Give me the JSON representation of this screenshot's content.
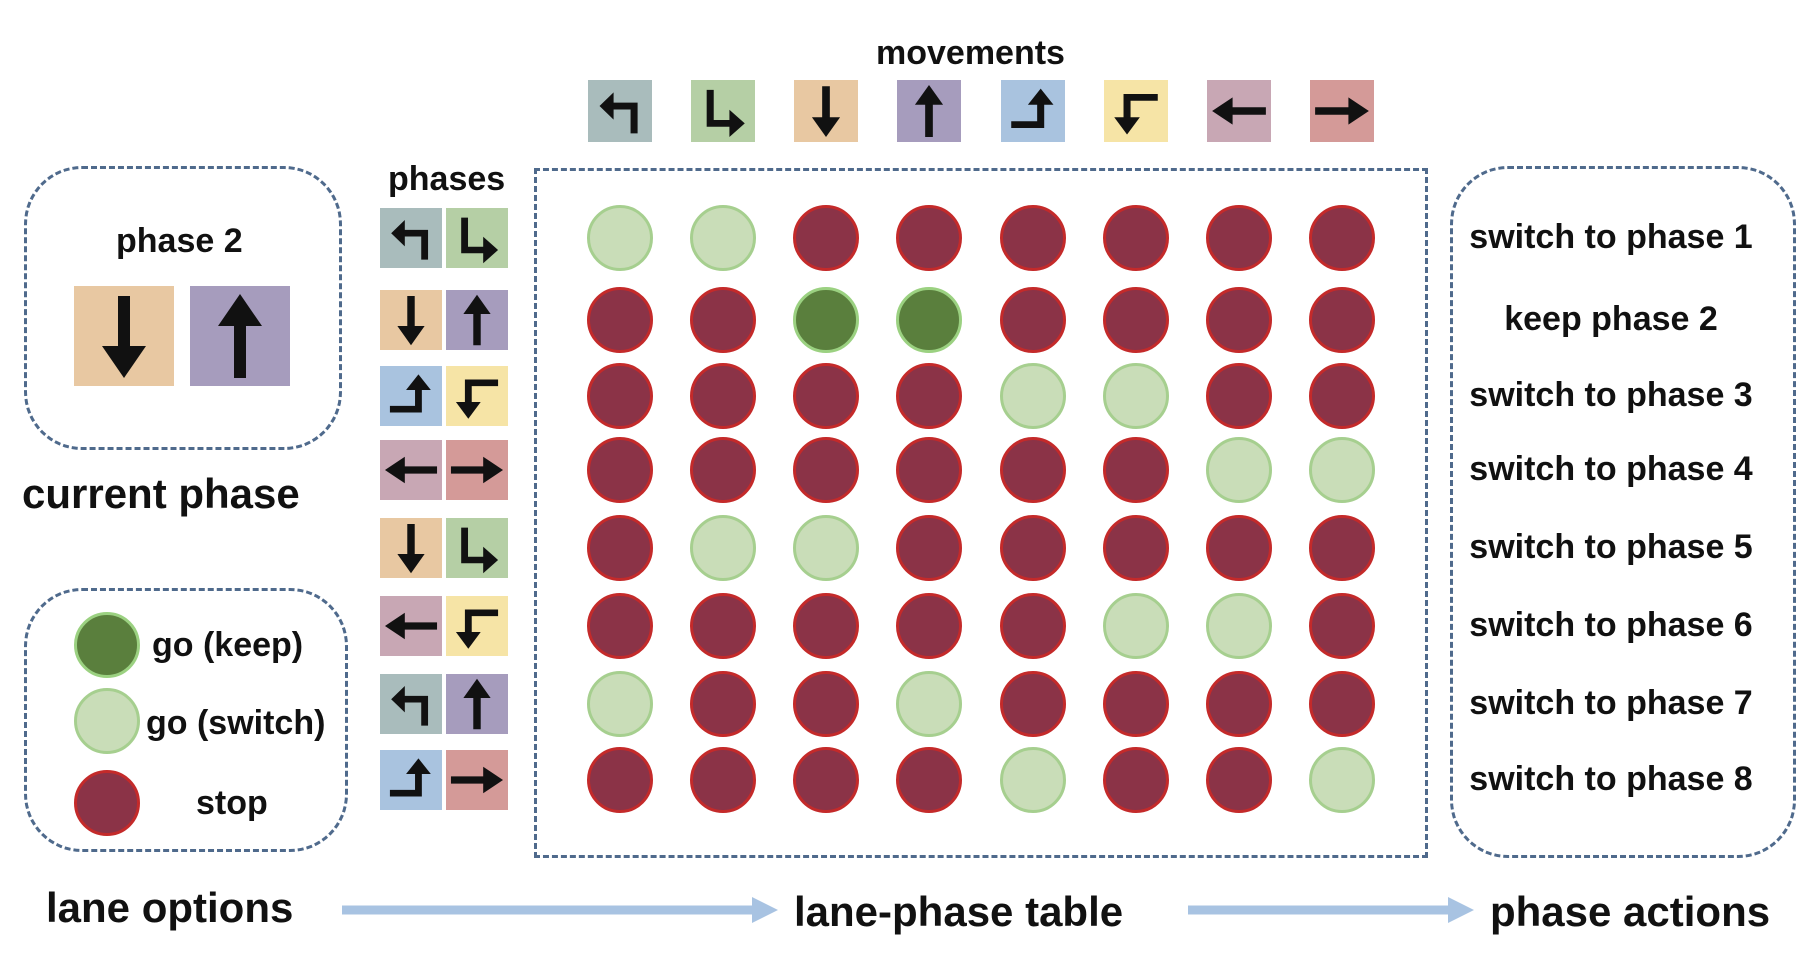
{
  "movements_label": "movements",
  "phases_label": "phases",
  "current_phase": {
    "title": "phase 2",
    "caption": "current phase",
    "movements": [
      "south",
      "north"
    ]
  },
  "movements": [
    {
      "name": "north-left-turn",
      "color": "#a9bcbc",
      "icon": "turn-left-arrow-icon"
    },
    {
      "name": "west-right-turn",
      "color": "#b5cfa5",
      "icon": "turn-right-arrow-icon"
    },
    {
      "name": "south-through",
      "color": "#e8c8a2",
      "icon": "down-arrow-icon"
    },
    {
      "name": "north-through",
      "color": "#a69cbd",
      "icon": "up-arrow-icon"
    },
    {
      "name": "south-left-turn",
      "color": "#a9c3df",
      "icon": "turn-up-arrow-icon"
    },
    {
      "name": "east-right-turn",
      "color": "#f6e4a6",
      "icon": "turn-down-arrow-icon"
    },
    {
      "name": "west-through",
      "color": "#c8a7b4",
      "icon": "left-arrow-icon"
    },
    {
      "name": "east-through",
      "color": "#d49a98",
      "icon": "right-arrow-icon"
    }
  ],
  "phases": [
    [
      0,
      1
    ],
    [
      2,
      3
    ],
    [
      4,
      5
    ],
    [
      6,
      7
    ],
    [
      2,
      1
    ],
    [
      6,
      5
    ],
    [
      0,
      3
    ],
    [
      4,
      7
    ]
  ],
  "table": [
    [
      "switch",
      "switch",
      "stop",
      "stop",
      "stop",
      "stop",
      "stop",
      "stop"
    ],
    [
      "stop",
      "stop",
      "keep",
      "keep",
      "stop",
      "stop",
      "stop",
      "stop"
    ],
    [
      "stop",
      "stop",
      "stop",
      "stop",
      "switch",
      "switch",
      "stop",
      "stop"
    ],
    [
      "stop",
      "stop",
      "stop",
      "stop",
      "stop",
      "stop",
      "switch",
      "switch"
    ],
    [
      "stop",
      "switch",
      "switch",
      "stop",
      "stop",
      "stop",
      "stop",
      "stop"
    ],
    [
      "stop",
      "stop",
      "stop",
      "stop",
      "stop",
      "switch",
      "switch",
      "stop"
    ],
    [
      "switch",
      "stop",
      "stop",
      "switch",
      "stop",
      "stop",
      "stop",
      "stop"
    ],
    [
      "stop",
      "stop",
      "stop",
      "stop",
      "switch",
      "stop",
      "stop",
      "switch"
    ]
  ],
  "actions": [
    "switch to phase 1",
    "keep phase 2",
    "switch to phase 3",
    "switch to phase 4",
    "switch to phase 5",
    "switch to phase 6",
    "switch to phase 7",
    "switch to phase 8"
  ],
  "legend": {
    "keep": "go (keep)",
    "switch": "go (switch)",
    "stop": "stop"
  },
  "colors": {
    "keep": "#5a7f3d",
    "switch": "#c9ddb8",
    "stop": "#8b3347",
    "border": "#4f6a8c",
    "flow_arrow": "#a8c3e2"
  },
  "bottom": {
    "lane_options": "lane options",
    "lane_phase_table": "lane-phase table",
    "phase_actions": "phase actions"
  }
}
